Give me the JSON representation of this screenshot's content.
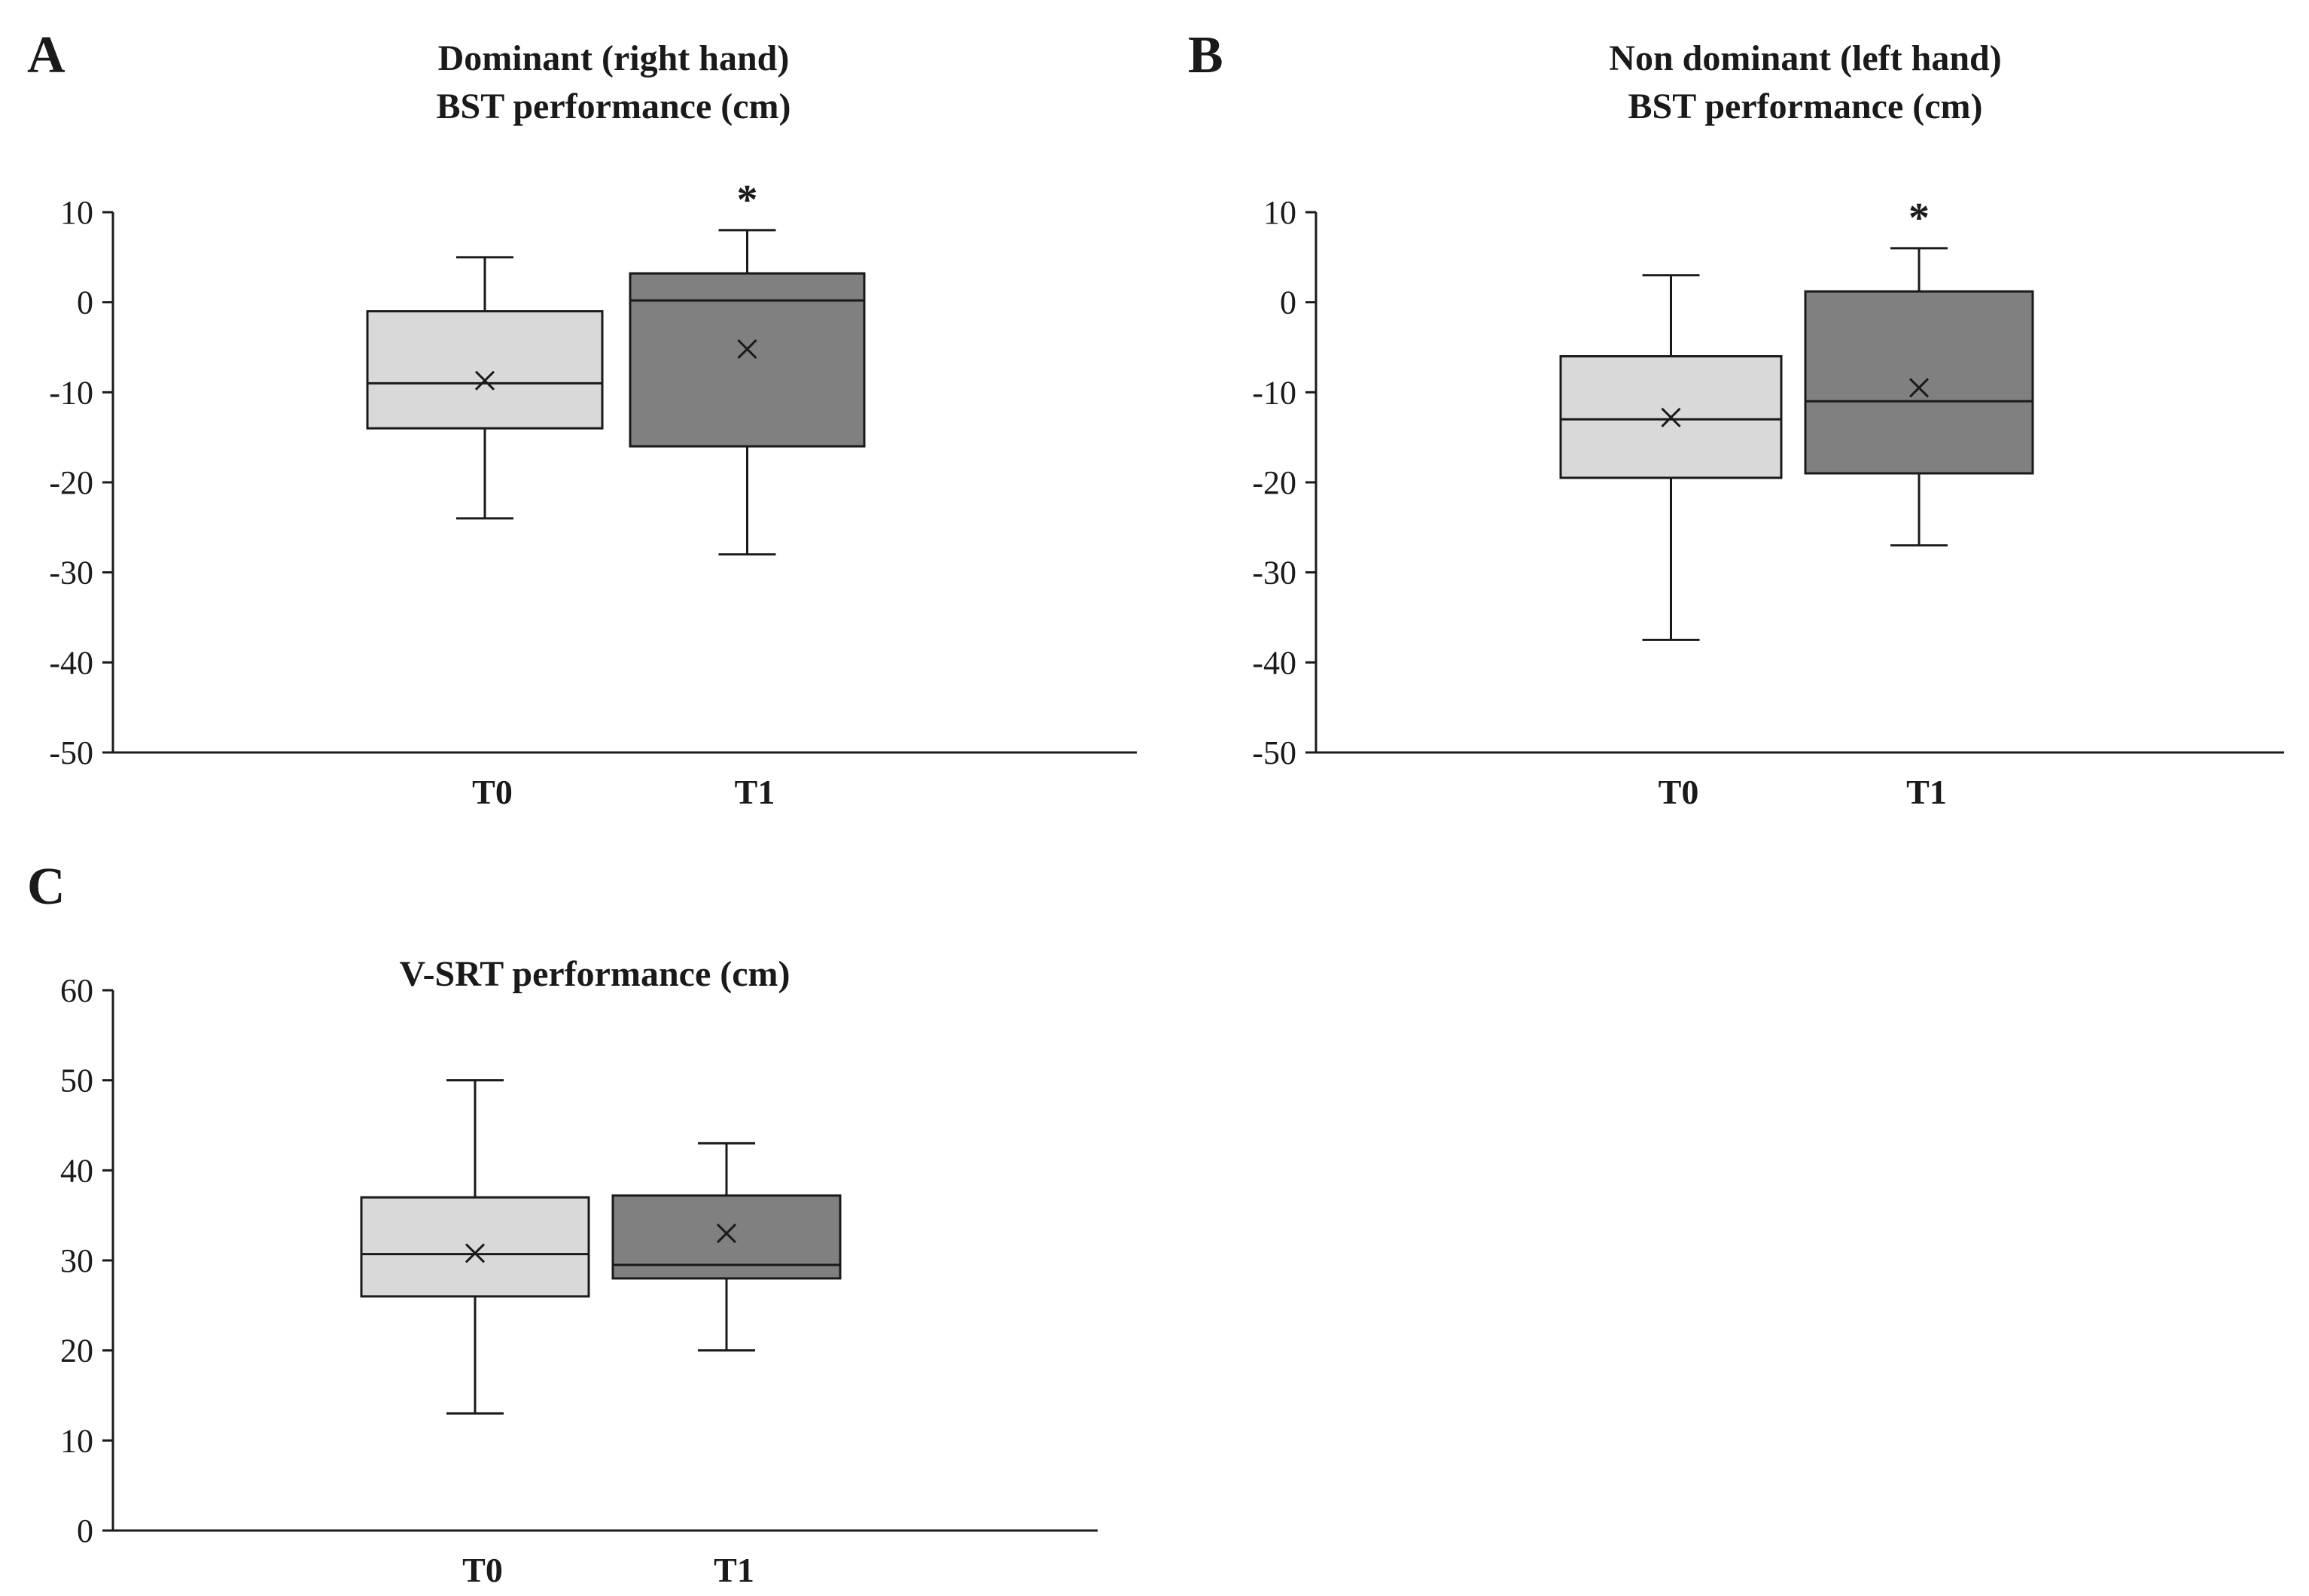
{
  "chart_data": [
    {
      "type": "box",
      "panel": "A",
      "title": [
        "Dominant (right hand)",
        "BST performance (cm)"
      ],
      "xlabel": "",
      "ylabel": "",
      "categories": [
        "T0",
        "T1"
      ],
      "yticks": [
        "10",
        "0",
        "-10",
        "-20",
        "-30",
        "-40",
        "-50"
      ],
      "ylim": [
        -50,
        10
      ],
      "boxes": [
        {
          "name": "T0",
          "min": -24,
          "q1": -14,
          "median": -9,
          "q3": -1,
          "max": 5,
          "mean": -8.7,
          "color": "#d9d9d9",
          "significance": ""
        },
        {
          "name": "T1",
          "min": -28,
          "q1": -16,
          "median": 0.2,
          "q3": 3.2,
          "max": 8,
          "mean": -5.2,
          "color": "#808080",
          "significance": "*"
        }
      ]
    },
    {
      "type": "box",
      "panel": "B",
      "title": [
        "Non dominant (left hand)",
        "BST performance (cm)"
      ],
      "xlabel": "",
      "ylabel": "",
      "categories": [
        "T0",
        "T1"
      ],
      "yticks": [
        "10",
        "0",
        "-10",
        "-20",
        "-30",
        "-40",
        "-50"
      ],
      "ylim": [
        -50,
        10
      ],
      "boxes": [
        {
          "name": "T0",
          "min": -37.5,
          "q1": -19.5,
          "median": -13,
          "q3": -6,
          "max": 3,
          "mean": -12.8,
          "color": "#d9d9d9",
          "significance": ""
        },
        {
          "name": "T1",
          "min": -27,
          "q1": -19,
          "median": -11,
          "q3": 1.2,
          "max": 6,
          "mean": -9.5,
          "color": "#808080",
          "significance": "*"
        }
      ]
    },
    {
      "type": "box",
      "panel": "C",
      "title": [
        "V-SRT performance (cm)"
      ],
      "xlabel": "",
      "ylabel": "",
      "categories": [
        "T0",
        "T1"
      ],
      "yticks": [
        "60",
        "50",
        "40",
        "30",
        "20",
        "10",
        "0"
      ],
      "ylim": [
        0,
        60
      ],
      "boxes": [
        {
          "name": "T0",
          "min": 13,
          "q1": 26,
          "median": 30.7,
          "q3": 37,
          "max": 50,
          "mean": 30.8,
          "color": "#d9d9d9",
          "significance": ""
        },
        {
          "name": "T1",
          "min": 20,
          "q1": 28,
          "median": 29.5,
          "q3": 37.2,
          "max": 43,
          "mean": 33,
          "color": "#808080",
          "significance": ""
        }
      ]
    }
  ]
}
